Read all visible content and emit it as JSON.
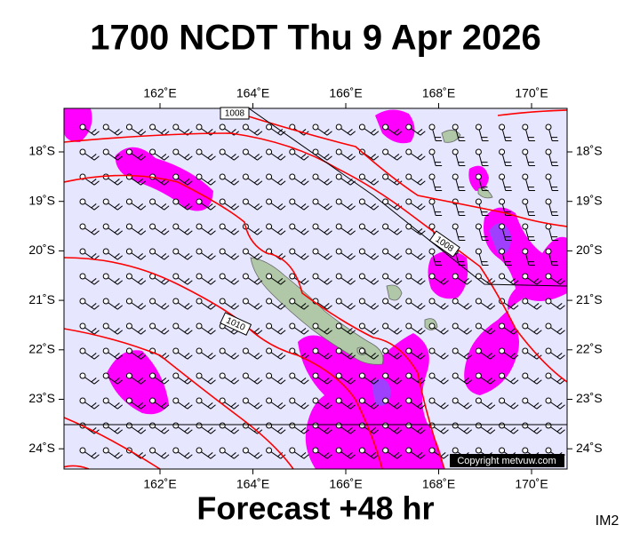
{
  "header": {
    "title": "1700 NCDT Thu 9 Apr 2026"
  },
  "map": {
    "lon_labels": [
      "162˚E",
      "164˚E",
      "166˚E",
      "168˚E",
      "170˚E"
    ],
    "lat_labels": [
      "18˚S",
      "19˚S",
      "20˚S",
      "21˚S",
      "22˚S",
      "23˚S",
      "24˚S"
    ],
    "isobar_labels": [
      "1008",
      "1008",
      "1010"
    ],
    "copyright": "Copyright metvuw.com"
  },
  "footer": {
    "subtitle": "Forecast +48 hr",
    "image_id": "IM2"
  }
}
